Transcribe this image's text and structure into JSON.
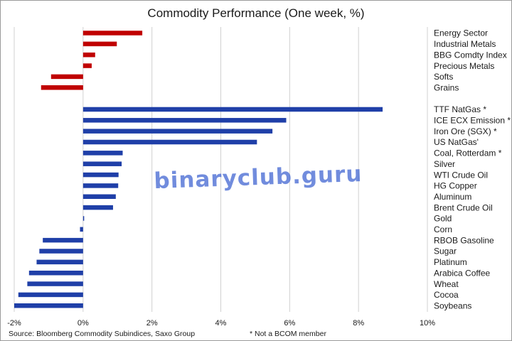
{
  "chart_data": {
    "type": "bar",
    "orientation": "horizontal",
    "title": "Commodity Performance (One week, %)",
    "xlim": [
      -2,
      10
    ],
    "x_ticks": [
      -2,
      0,
      2,
      4,
      6,
      8,
      10
    ],
    "x_tick_suffix": "%",
    "grid": true,
    "colors": {
      "indices": "#c00000",
      "commodities": "#1f3fa8",
      "grid": "#d0d0d0"
    },
    "groups": [
      {
        "series_color_key": "indices",
        "categories": [
          "Energy Sector",
          "Industrial Metals",
          "BBG Comdty Index",
          "Precious Metals",
          "Softs",
          "Grains"
        ],
        "values": [
          1.72,
          0.98,
          0.35,
          0.25,
          -0.93,
          -1.22
        ]
      },
      {
        "series_color_key": "commodities",
        "categories": [
          "TTF NatGas *",
          "ICE ECX Emission *",
          "Iron Ore (SGX) *",
          "US NatGas'",
          "Coal, Rotterdam *",
          "Silver",
          "WTI Crude Oil",
          "HG Copper",
          "Aluminum",
          "Brent Crude Oil",
          "Gold",
          "Corn",
          "RBOB Gasoline",
          "Sugar",
          "Platinum",
          "Arabica Coffee",
          "Wheat",
          "Cocoa",
          "Soybeans"
        ],
        "values": [
          8.7,
          5.9,
          5.5,
          5.05,
          1.15,
          1.12,
          1.03,
          1.02,
          0.95,
          0.87,
          0.0,
          -0.09,
          -1.17,
          -1.27,
          -1.35,
          -1.57,
          -1.62,
          -1.88,
          -2.0
        ]
      }
    ],
    "source": "Source: Bloomberg Commodity Subindices, Saxo Group",
    "note": "* Not a BCOM member"
  },
  "watermark": "binaryclub.guru"
}
